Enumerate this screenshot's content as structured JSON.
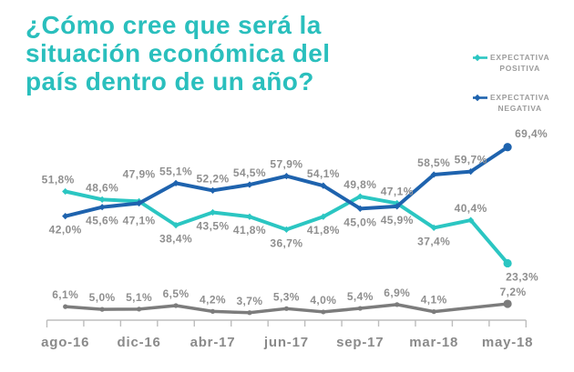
{
  "page": {
    "background": "#ffffff"
  },
  "title": {
    "lines": [
      "¿Cómo cree que será la",
      "situación económica del",
      "país dentro de un año?"
    ],
    "color": "#2abfbd"
  },
  "legend": {
    "items": [
      {
        "line1": "EXPECTATIVA",
        "line2": "POSITIVA",
        "color": "#2bc6c2"
      },
      {
        "line1": "EXPECTATIVA",
        "line2": "NEGATIVA",
        "color": "#1e63ae"
      }
    ]
  },
  "chart_data": {
    "type": "line",
    "title": "¿Cómo cree que será la situación económica del país dentro de un año?",
    "x_tick_labels": [
      "ago-16",
      "dic-16",
      "abr-17",
      "jun-17",
      "sep-17",
      "mar-18",
      "may-18"
    ],
    "x_tick_indices": [
      0,
      2,
      4,
      6,
      8,
      10,
      12
    ],
    "n_points": 13,
    "ylim": [
      0,
      75
    ],
    "grid": false,
    "legend_position": "top-right",
    "label_color": "#8f8f8f",
    "axis_color": "#bdbdbd",
    "axis_label_color": "#8a8a8a",
    "series": [
      {
        "name": "EXPECTATIVA POSITIVA",
        "color": "#2bc6c2",
        "marker": "diamond",
        "values": [
          51.8,
          48.6,
          47.9,
          38.4,
          43.5,
          41.8,
          36.7,
          41.8,
          49.8,
          47.1,
          37.4,
          40.4,
          23.3
        ],
        "labels": [
          "51,8%",
          "48,6%",
          "47,9%",
          "38,4%",
          "43,5%",
          "41,8%",
          "36,7%",
          "41,8%",
          "49,8%",
          "47,1%",
          "37,4%",
          "40,4%",
          "23,3%"
        ],
        "label_side": [
          "above",
          "above",
          "above",
          "below",
          "below",
          "below",
          "below",
          "below",
          "above",
          "above",
          "below",
          "above",
          "below"
        ]
      },
      {
        "name": "EXPECTATIVA NEGATIVA",
        "color": "#1e63ae",
        "marker": "diamond",
        "values": [
          42.0,
          45.6,
          47.1,
          55.1,
          52.2,
          54.5,
          57.9,
          54.1,
          45.0,
          45.9,
          58.5,
          59.7,
          69.4
        ],
        "labels": [
          "42,0%",
          "45,6%",
          "47,1%",
          "55,1%",
          "52,2%",
          "54,5%",
          "57,9%",
          "54,1%",
          "45,0%",
          "45,9%",
          "58,5%",
          "59,7%",
          "69,4%"
        ],
        "label_side": [
          "below",
          "below",
          "below",
          "above",
          "above",
          "above",
          "above",
          "above",
          "below",
          "below",
          "above",
          "above",
          "above"
        ]
      },
      {
        "name": "",
        "color": "#7c7c7c",
        "marker": "circle",
        "values": [
          6.1,
          5.0,
          5.1,
          6.5,
          4.2,
          3.7,
          5.3,
          4.0,
          5.4,
          6.9,
          4.1,
          null,
          7.2
        ],
        "labels": [
          "6,1%",
          "5,0%",
          "5,1%",
          "6,5%",
          "4,2%",
          "3,7%",
          "5,3%",
          "4,0%",
          "5,4%",
          "6,9%",
          "4,1%",
          "",
          "7,2%"
        ],
        "label_side": [
          "above",
          "above",
          "above",
          "above",
          "above",
          "above",
          "above",
          "above",
          "above",
          "above",
          "above",
          "above",
          "above"
        ]
      }
    ]
  }
}
